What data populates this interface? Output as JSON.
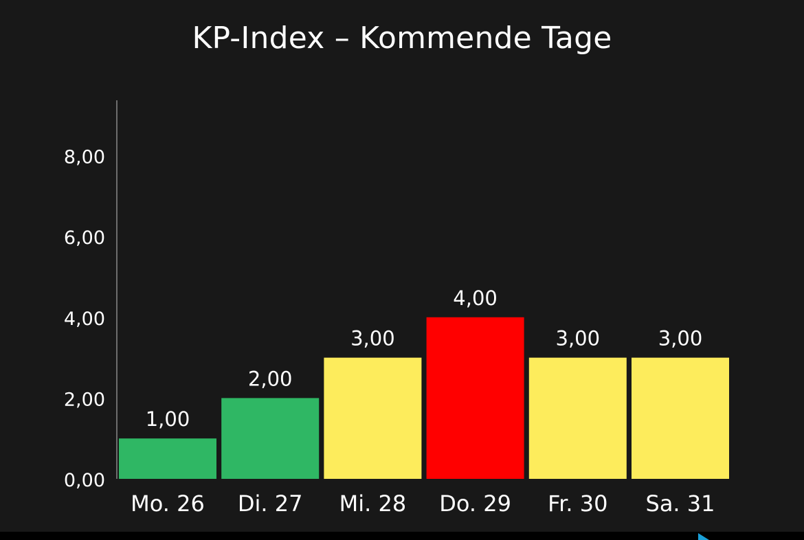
{
  "chart_data": {
    "type": "bar",
    "title": "KP-Index – Kommende Tage",
    "categories": [
      "Mo. 26",
      "Di. 27",
      "Mi. 28",
      "Do. 29",
      "Fr. 30",
      "Sa. 31"
    ],
    "values": [
      1,
      2,
      3,
      4,
      3,
      3
    ],
    "value_labels": [
      "1,00",
      "2,00",
      "3,00",
      "4,00",
      "3,00",
      "3,00"
    ],
    "bar_colors": [
      "#2fb764",
      "#2fb764",
      "#fdec5c",
      "#ff0000",
      "#fdec5c",
      "#fdec5c"
    ],
    "ylim": [
      0,
      9.4
    ],
    "yticks": [
      0,
      2,
      4,
      6,
      8
    ],
    "ytick_labels": [
      "0,00",
      "2,00",
      "4,00",
      "6,00",
      "8,00"
    ],
    "xlabel": "",
    "ylabel": "",
    "grid": false,
    "legend": "none"
  },
  "colors": {
    "background": "#181818",
    "text": "#ffffff",
    "axis": "#8a8a8a"
  }
}
